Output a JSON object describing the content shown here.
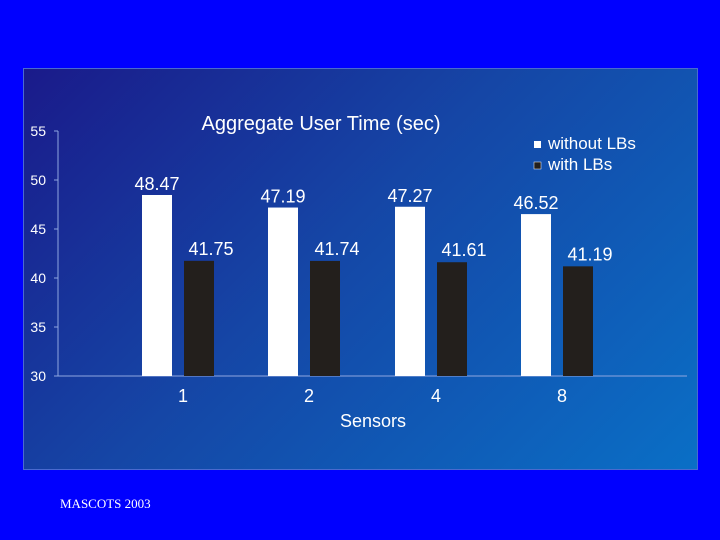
{
  "slide": {
    "footer": "MASCOTS 2003",
    "background_color": "#0000ff"
  },
  "chart_data": {
    "type": "bar",
    "title": "Aggregate User Time (sec)",
    "xlabel": "Sensors",
    "ylabel": "",
    "categories": [
      "1",
      "2",
      "4",
      "8"
    ],
    "series": [
      {
        "name": "without LBs",
        "values": [
          48.47,
          47.19,
          47.27,
          46.52
        ],
        "color": "#ffffff"
      },
      {
        "name": "with LBs",
        "values": [
          41.75,
          41.74,
          41.61,
          41.19
        ],
        "color": "#231f1c"
      }
    ],
    "data_labels": [
      [
        "48.47",
        "47.19",
        "47.27",
        "46.52"
      ],
      [
        "41.75",
        "41.74",
        "41.61",
        "41.19"
      ]
    ],
    "ylim": [
      30,
      55
    ],
    "yticks": [
      "30",
      "35",
      "40",
      "45",
      "50",
      "55"
    ],
    "grid": false,
    "legend_position": "top-right"
  }
}
